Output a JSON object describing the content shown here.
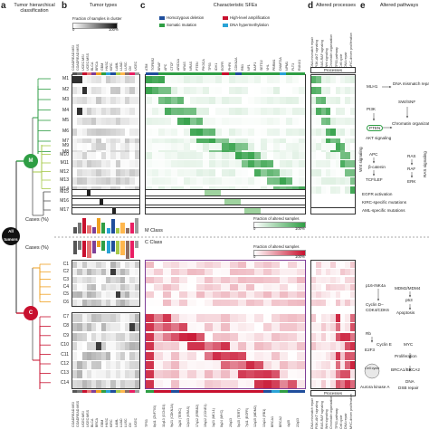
{
  "panels": {
    "a": {
      "letter": "a",
      "title": "Tumor hierarchical classification"
    },
    "b": {
      "letter": "b",
      "title": "Tumor types",
      "legend_title": "Fraction of samples in cluster",
      "scale_min": "0",
      "scale_max": "100%"
    },
    "c": {
      "letter": "c",
      "title": "Characteristic SFEs",
      "legend": [
        {
          "label": "Homozygous deletion",
          "color": "#1f4e9c"
        },
        {
          "label": "High-level amplification",
          "color": "#c8102e"
        },
        {
          "label": "Somatic mutation",
          "color": "#2e9e44"
        },
        {
          "label": "DNA hypermethylation",
          "color": "#29a3d6"
        }
      ]
    },
    "d": {
      "letter": "d",
      "title": "Altered processes",
      "header": "Processes"
    },
    "e": {
      "letter": "e",
      "title": "Altered pathways"
    }
  },
  "tree": {
    "root": "All tumors",
    "m_node": "M",
    "c_node": "C",
    "m_clusters": [
      "M1",
      "M2",
      "M3",
      "M4",
      "M5",
      "M6",
      "M7",
      "M8",
      "M9",
      "M10",
      "M11",
      "M12",
      "M13",
      "M14",
      "M15",
      "M16",
      "M17"
    ],
    "c_clusters": [
      "C1",
      "C2",
      "C3",
      "C4",
      "C5",
      "C6",
      "C7",
      "C8",
      "C9",
      "C10",
      "C11",
      "C12",
      "C13",
      "C14"
    ],
    "m_color": "#2e9e44",
    "c_color": "#c8102e",
    "mid_color": "#f0a020"
  },
  "cases_labels": {
    "upper": "Cases (%)",
    "lower": "Cases (%)",
    "m_class": "M Class",
    "c_class": "C Class"
  },
  "scales": {
    "m_title": "Fraction of altered samples",
    "m_min": "0",
    "m_max": "100%",
    "c_title": "Fraction of altered samples",
    "c_min": "0",
    "c_max": "100%"
  },
  "m_bottom_labels": [
    {
      "label": "EGFR activation"
    },
    {
      "label": "KIRC-specific mutations"
    },
    {
      "label": "AML-specific mutations"
    }
  ],
  "tumor_types": [
    "COADREAD:MSI",
    "COADREAD:MSS",
    "UCEC:MSI",
    "UCEC:MSS",
    "BLCA",
    "BRCA",
    "GBM",
    "HNSC",
    "KIRC",
    "LAML",
    "LUAD",
    "LUSC",
    "OV",
    "UCEC"
  ],
  "m_sfe_labels": [
    "ATM",
    "TGFBR2",
    "BRAF",
    "APC",
    "CTCF",
    "ARID1A",
    "KRAS",
    "NRAS",
    "PTEN",
    "PIK3CA",
    "TP53",
    "IDH1",
    "EGFR",
    "PHF6",
    "CDKN2A",
    "RB1",
    "NF1",
    "BAP1",
    "SETD2",
    "VHL",
    "PBRM1",
    "DNMT3A",
    "NPM1",
    "FLT3",
    "RUNX1"
  ],
  "c_sfe_labels": [
    "TP53",
    "8p11 (ZNF703)",
    "11q13 (CCND1)",
    "9p21 (CDKN2A)",
    "3q26 (TERC)",
    "12p13 (KRAS)",
    "17q12 (ERBB2)",
    "19q12 (CCNE1)",
    "1q21 (MCL1)",
    "8q24 (MYC)",
    "20q13",
    "5p15 (TERT)",
    "7p11 (EGFR)",
    "12q15 (MDM2)",
    "13q14 (RB1)",
    "BRCA1",
    "BRCA2",
    "4q35",
    "22q13"
  ],
  "d_labels": [
    "DNA mismatch repair",
    "PI3K-AKT signaling",
    "RAS-RAF signaling",
    "Wnt signaling",
    "Chromatin organization",
    "TP53 pathway",
    "Cell cycle",
    "DNA repair",
    "MYC-driven proliferation"
  ],
  "pathways_m": {
    "mlh1": "MLH1",
    "mismatch": "DNA mismatch repair",
    "swisnf": "SWI/SNF",
    "pi3k": "PI3K",
    "pten": "PTEN",
    "chromatin": "Chromatin organization",
    "akt": "AKT signaling",
    "apc": "APC",
    "bcat": "β-catenin",
    "tcf": "TCF/LEF",
    "wnt": "Wnt signaling",
    "ras": "RAS",
    "raf": "RAF",
    "erk": "ERK",
    "rassig": "RAS signaling",
    "egfr_lbl": "EGFR activation",
    "kirc_lbl": "KIRC-specific mutations",
    "aml_lbl": "AML-specific mutations"
  },
  "pathways_c": {
    "p16": "p16-INK4a",
    "cyclind": "Cyclin D–",
    "cdk46": "CDK4/CDK6",
    "mdm": "MDM2/MDM4",
    "p53": "p53",
    "apoptosis": "Apoptosis",
    "rb": "Rb",
    "cycline": "Cyclin E",
    "e2f3": "E2F3",
    "cellcycle": "Cell cycle",
    "myc": "MYC",
    "prolif": "Proliferation",
    "brca": "BRCA1/BRCA2",
    "dna": "DNA",
    "dsb": "DSB repair",
    "aurora": "Aurora kinase A"
  },
  "colors": {
    "m_accent": "#2e9e44",
    "c_accent": "#c8102e",
    "del": "#1f4e9c",
    "meth": "#29a3d6",
    "orange": "#f0a020",
    "purple": "#7e3f98"
  }
}
